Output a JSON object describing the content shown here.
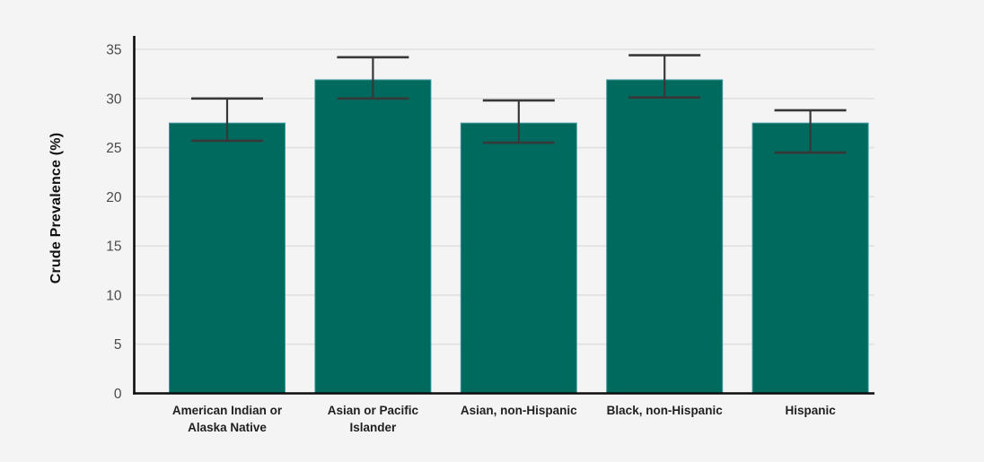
{
  "chart_data": {
    "type": "bar",
    "title": "",
    "xlabel": "",
    "ylabel": "Crude Prevalence (%)",
    "ylim": [
      0,
      35
    ],
    "yticks": [
      0,
      5,
      10,
      15,
      20,
      25,
      30,
      35
    ],
    "grid": true,
    "legend_position": "none",
    "categories": [
      "American Indian or\nAlaska Native",
      "Asian or Pacific\nIslander",
      "Asian, non-Hispanic",
      "Black, non-Hispanic",
      "Hispanic"
    ],
    "series": [
      {
        "name": "Crude Prevalence",
        "values": [
          27.5,
          31.9,
          27.5,
          31.9,
          27.5
        ],
        "error_low": [
          25.7,
          30.0,
          25.5,
          30.1,
          24.5
        ],
        "error_high": [
          30.0,
          34.2,
          29.8,
          34.4,
          28.8
        ]
      }
    ],
    "colors": {
      "bar_fill": "#006A5F",
      "bar_border": "#3F98A0",
      "error_bar": "#383838",
      "axis_line": "#0d0d0d",
      "gridline": "#e0e0e0",
      "tick_label": "#4a4a4a",
      "category_label": "#1f1f1f",
      "background": "#f4f4f4"
    }
  }
}
